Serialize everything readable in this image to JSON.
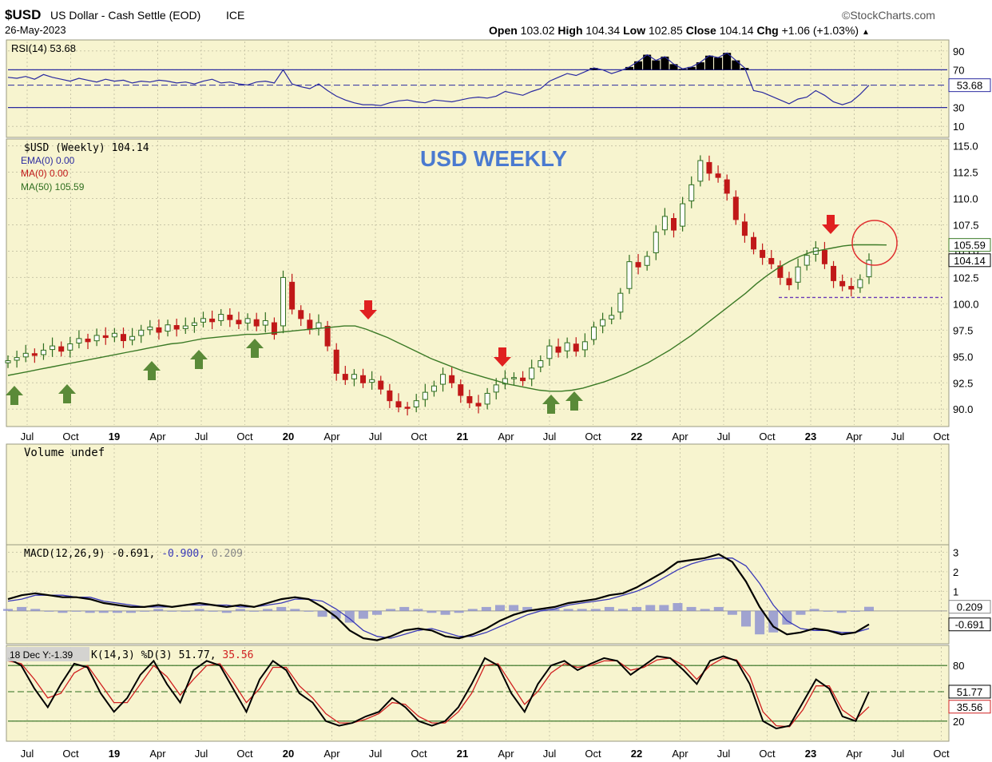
{
  "header": {
    "symbol": "$USD",
    "description": "US Dollar - Cash Settle (EOD)",
    "exchange": "ICE",
    "date": "26-May-2023",
    "source": "©StockCharts.com",
    "open_label": "Open",
    "open": "103.02",
    "high_label": "High",
    "high": "104.34",
    "low_label": "Low",
    "low": "102.85",
    "close_label": "Close",
    "close": "104.14",
    "chg_label": "Chg",
    "chg": "+1.06 (+1.03%)"
  },
  "chart_data": [
    {
      "type": "line",
      "panel": "rsi",
      "legend": "RSI(14) 53.68",
      "ylim": [
        0,
        100
      ],
      "ticks": [
        90,
        70,
        30,
        10
      ],
      "overbought": 70,
      "oversold": 30,
      "last_label": "53.68",
      "series": [
        {
          "values": [
            62,
            61,
            63,
            60,
            65,
            62,
            60,
            58,
            61,
            59,
            57,
            60,
            58,
            59,
            56,
            58,
            57,
            59,
            58,
            56,
            57,
            55,
            58,
            60,
            56,
            57,
            55,
            54,
            57,
            58,
            56,
            70,
            55,
            52,
            50,
            55,
            48,
            42,
            38,
            35,
            33,
            33,
            32,
            35,
            37,
            38,
            36,
            35,
            38,
            37,
            36,
            38,
            40,
            41,
            40,
            42,
            47,
            45,
            43,
            47,
            50,
            58,
            62,
            66,
            64,
            68,
            72,
            70,
            66,
            69,
            73,
            79,
            86,
            80,
            84,
            76,
            71,
            73,
            78,
            85,
            83,
            88,
            80,
            72,
            48,
            46,
            42,
            38,
            34,
            39,
            41,
            48,
            43,
            36,
            33,
            36,
            44,
            53.68
          ]
        }
      ]
    },
    {
      "type": "line",
      "panel": "price",
      "title": "USD WEEKLY",
      "legend": [
        "$USD (Weekly) 104.14",
        "EMA(0) 0.00",
        "MA(0) 0.00",
        "MA(50) 105.59"
      ],
      "ylim": [
        88.5,
        115.5
      ],
      "ticks": [
        115.0,
        112.5,
        110.0,
        107.5,
        105.0,
        102.5,
        100.0,
        97.5,
        95.0,
        92.5,
        90.0
      ],
      "x_ticks": [
        "Jul",
        "Oct",
        "19",
        "Apr",
        "Jul",
        "Oct",
        "20",
        "Apr",
        "Jul",
        "Oct",
        "21",
        "Apr",
        "Jul",
        "Oct",
        "22",
        "Apr",
        "Jul",
        "Oct",
        "23",
        "Apr",
        "Jul",
        "Oct"
      ],
      "ma_label": "105.59",
      "last_label": "104.14",
      "support_level": 100.6,
      "series": [
        {
          "name": "$USD (Weekly)",
          "values": [
            94.6,
            94.9,
            95.3,
            95.1,
            95.6,
            96.0,
            95.5,
            96.2,
            96.7,
            96.4,
            97.0,
            96.8,
            97.2,
            96.5,
            96.9,
            97.5,
            97.8,
            97.3,
            98.0,
            97.6,
            97.9,
            98.2,
            98.6,
            98.3,
            99.0,
            98.5,
            98.1,
            98.6,
            97.9,
            98.4,
            97.1,
            102.5,
            99.5,
            98.6,
            97.6,
            98.2,
            96.0,
            93.4,
            92.8,
            93.3,
            92.5,
            92.8,
            91.9,
            90.8,
            90.2,
            90.1,
            90.8,
            91.6,
            92.2,
            93.3,
            92.5,
            91.3,
            90.6,
            90.3,
            91.5,
            92.3,
            92.9,
            93.0,
            92.7,
            93.9,
            94.6,
            96.0,
            95.4,
            96.3,
            95.5,
            96.4,
            97.8,
            98.5,
            98.9,
            101.0,
            104.0,
            103.5,
            104.5,
            106.8,
            108.3,
            107.0,
            109.5,
            111.3,
            113.6,
            112.4,
            112.0,
            110.5,
            108.0,
            106.5,
            105.2,
            104.4,
            103.8,
            102.5,
            101.8,
            103.5,
            104.6,
            105.3,
            103.8,
            102.2,
            101.7,
            101.4,
            102.3,
            104.14
          ]
        },
        {
          "name": "MA(50)",
          "values": [
            93.2,
            93.4,
            93.6,
            93.8,
            94.0,
            94.2,
            94.4,
            94.6,
            94.8,
            95.0,
            95.2,
            95.4,
            95.6,
            95.8,
            96.0,
            96.2,
            96.3,
            96.5,
            96.7,
            96.8,
            96.9,
            97.0,
            97.1,
            97.1,
            97.2,
            97.3,
            97.4,
            97.5,
            97.6,
            97.7,
            97.8,
            97.9,
            97.9,
            97.6,
            97.2,
            96.8,
            96.3,
            95.8,
            95.3,
            94.8,
            94.4,
            94.0,
            93.6,
            93.3,
            93.0,
            92.7,
            92.4,
            92.2,
            92.0,
            91.8,
            91.7,
            91.7,
            91.8,
            92.0,
            92.3,
            92.6,
            93.0,
            93.4,
            93.9,
            94.4,
            95.0,
            95.6,
            96.3,
            97.0,
            97.8,
            98.6,
            99.4,
            100.2,
            101.0,
            101.9,
            102.7,
            103.4,
            104.0,
            104.5,
            104.9,
            105.1,
            105.3,
            105.5,
            105.6,
            105.6,
            105.6,
            105.59
          ]
        }
      ],
      "annotations": {
        "up_arrows": [
          "Jul",
          "Oct",
          "19-Apr",
          "19-Jul",
          "19-Oct",
          "21-Jul",
          "21-Aug"
        ],
        "down_arrows": [
          "20-Jul",
          "21-Apr",
          "23-Feb"
        ]
      }
    },
    {
      "type": "bar",
      "panel": "volume",
      "legend": "Volume undef"
    },
    {
      "type": "line",
      "panel": "macd",
      "legend": [
        "MACD(12,26,9) -0.691,",
        "-0.900,",
        "0.209"
      ],
      "ylim": [
        -1.6,
        3.3
      ],
      "ticks": [
        3,
        2,
        1
      ],
      "signal_label": "0.209",
      "last_label": "-0.691",
      "series": [
        {
          "name": "MACD",
          "values": [
            0.6,
            0.8,
            0.9,
            0.8,
            0.7,
            0.7,
            0.6,
            0.4,
            0.3,
            0.2,
            0.2,
            0.3,
            0.2,
            0.3,
            0.4,
            0.3,
            0.2,
            0.3,
            0.2,
            0.4,
            0.6,
            0.7,
            0.6,
            0.2,
            -0.3,
            -1.0,
            -1.4,
            -1.5,
            -1.3,
            -1.0,
            -0.9,
            -1.0,
            -1.3,
            -1.4,
            -1.2,
            -0.9,
            -0.5,
            -0.2,
            0.0,
            0.1,
            0.2,
            0.4,
            0.5,
            0.6,
            0.8,
            0.9,
            1.2,
            1.6,
            2.0,
            2.5,
            2.6,
            2.7,
            2.9,
            2.5,
            1.5,
            0.2,
            -0.8,
            -1.2,
            -1.1,
            -0.9,
            -1.0,
            -1.2,
            -1.1,
            -0.691
          ]
        },
        {
          "name": "Signal",
          "values": [
            0.5,
            0.6,
            0.8,
            0.8,
            0.8,
            0.7,
            0.7,
            0.5,
            0.4,
            0.3,
            0.2,
            0.2,
            0.2,
            0.3,
            0.3,
            0.3,
            0.3,
            0.2,
            0.2,
            0.3,
            0.4,
            0.6,
            0.6,
            0.5,
            0.1,
            -0.4,
            -1.0,
            -1.3,
            -1.4,
            -1.2,
            -1.0,
            -0.9,
            -1.1,
            -1.3,
            -1.3,
            -1.1,
            -0.8,
            -0.5,
            -0.2,
            0.0,
            0.1,
            0.3,
            0.4,
            0.5,
            0.6,
            0.8,
            1.0,
            1.3,
            1.7,
            2.1,
            2.4,
            2.6,
            2.7,
            2.7,
            2.3,
            1.4,
            0.3,
            -0.5,
            -0.9,
            -1.0,
            -1.0,
            -1.1,
            -1.1,
            -0.9
          ]
        },
        {
          "name": "Histogram",
          "values": [
            0.1,
            0.2,
            0.1,
            0.0,
            -0.1,
            0.0,
            -0.1,
            -0.1,
            -0.1,
            -0.1,
            0.0,
            0.1,
            0.0,
            0.0,
            0.1,
            0.0,
            -0.1,
            0.1,
            0.0,
            0.1,
            0.2,
            0.1,
            0.0,
            -0.3,
            -0.4,
            -0.6,
            -0.4,
            -0.2,
            0.1,
            0.2,
            0.1,
            -0.1,
            -0.2,
            -0.1,
            0.1,
            0.2,
            0.3,
            0.3,
            0.2,
            0.1,
            0.1,
            0.1,
            0.1,
            0.1,
            0.2,
            0.1,
            0.2,
            0.3,
            0.3,
            0.4,
            0.2,
            0.1,
            0.2,
            -0.2,
            -0.8,
            -1.2,
            -1.1,
            -0.7,
            -0.2,
            0.1,
            0.0,
            -0.1,
            0.0,
            0.209
          ]
        }
      ]
    },
    {
      "type": "line",
      "panel": "stochastic",
      "legend": [
        "K(14,3) %D(3) 51.77,",
        "35.56"
      ],
      "tooltip": "18 Dec Y:-1.39",
      "ylim": [
        0,
        100
      ],
      "ticks": [
        80,
        20
      ],
      "k_label": "51.77",
      "d_label": "35.56",
      "series": [
        {
          "name": "%K",
          "values": [
            88,
            80,
            55,
            35,
            60,
            82,
            78,
            50,
            30,
            45,
            70,
            85,
            60,
            40,
            75,
            85,
            80,
            55,
            30,
            65,
            85,
            75,
            50,
            40,
            20,
            15,
            18,
            25,
            30,
            45,
            35,
            20,
            15,
            20,
            35,
            60,
            88,
            80,
            50,
            30,
            60,
            80,
            85,
            75,
            82,
            88,
            85,
            70,
            80,
            90,
            88,
            75,
            60,
            85,
            90,
            85,
            60,
            20,
            12,
            15,
            40,
            65,
            55,
            25,
            20,
            51.77
          ]
        },
        {
          "name": "%D",
          "values": [
            85,
            82,
            65,
            45,
            50,
            72,
            80,
            60,
            40,
            40,
            60,
            80,
            68,
            48,
            65,
            80,
            82,
            62,
            40,
            55,
            78,
            78,
            58,
            45,
            28,
            18,
            18,
            22,
            28,
            40,
            38,
            25,
            18,
            18,
            30,
            50,
            80,
            82,
            60,
            38,
            52,
            72,
            82,
            78,
            80,
            85,
            85,
            75,
            78,
            86,
            88,
            80,
            65,
            80,
            88,
            86,
            68,
            30,
            15,
            14,
            32,
            58,
            58,
            32,
            22,
            35.56
          ]
        }
      ],
      "x_ticks": [
        "Jul",
        "Oct",
        "19",
        "Apr",
        "Jul",
        "Oct",
        "20",
        "Apr",
        "Jul",
        "Oct",
        "21",
        "Apr",
        "Jul",
        "Oct",
        "22",
        "Apr",
        "Jul",
        "Oct",
        "23",
        "Apr",
        "Jul",
        "Oct"
      ]
    }
  ],
  "colors": {
    "panel_bg": "#f7f4cf",
    "grid": "#c9c6a8",
    "candle_up": "#2f6e1f",
    "candle_down": "#c01818",
    "ma": "#3b7a26",
    "rsi": "#2a2aa0",
    "title": "#4a7ad0",
    "arrow_up": "#5a8a38",
    "arrow_down": "#e02020",
    "macd": "#000000",
    "signal": "#3a3ab8",
    "hist": "#8a8fd0",
    "stoch_k": "#000000",
    "stoch_d": "#d02020",
    "circle": "#e03030"
  }
}
